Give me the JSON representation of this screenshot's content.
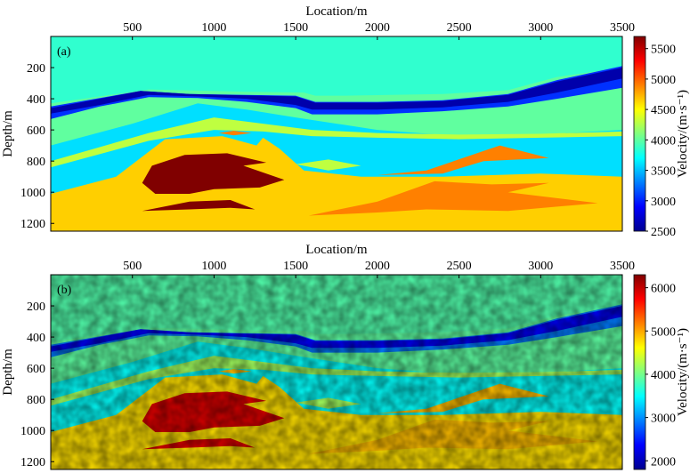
{
  "chart_data": [
    {
      "type": "heatmap",
      "panel_label": "(a)",
      "xlabel": "Location/m",
      "ylabel": "Depth/m",
      "colorbar_label": "Velocity/(m·s⁻¹)",
      "x_ticks": [
        500,
        1000,
        1500,
        2000,
        2500,
        3000,
        3500
      ],
      "y_ticks": [
        200,
        400,
        600,
        800,
        1000,
        1200
      ],
      "xlim": [
        0,
        3500
      ],
      "ylim": [
        1250,
        0
      ],
      "clim": [
        2500,
        5700
      ],
      "colorbar_ticks": [
        2500,
        3000,
        3500,
        4000,
        4500,
        5000,
        5500
      ],
      "noisy": false,
      "velocity_layers": {
        "background": 4000,
        "top_layer": 3850,
        "high_velocity_layer": 3050,
        "low_velocity_band": 2600,
        "lower_layer": 3600,
        "thin_sheets": 4300,
        "basement": 4650,
        "lenses": 4900,
        "salt_body": 5700
      }
    },
    {
      "type": "heatmap",
      "panel_label": "(b)",
      "xlabel": "Location/m",
      "ylabel": "Depth/m",
      "colorbar_label": "Velocity/(m·s⁻¹)",
      "x_ticks": [
        500,
        1000,
        1500,
        2000,
        2500,
        3000,
        3500
      ],
      "y_ticks": [
        200,
        400,
        600,
        800,
        1000,
        1200
      ],
      "xlim": [
        0,
        3500
      ],
      "ylim": [
        1250,
        0
      ],
      "clim": [
        1800,
        6300
      ],
      "colorbar_ticks": [
        2000,
        3000,
        4000,
        5000,
        6000
      ],
      "noisy": true,
      "velocity_layers": {
        "background": 3900,
        "top_layer": 3850,
        "high_velocity_layer": 2900,
        "low_velocity_band": 2300,
        "lower_layer": 3500,
        "thin_sheets": 4200,
        "basement": 4750,
        "lenses": 4900,
        "salt_body": 5900
      }
    }
  ]
}
